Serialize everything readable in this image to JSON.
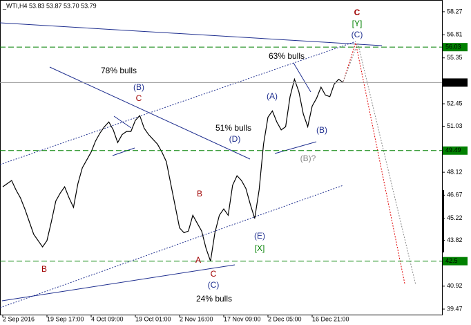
{
  "chart_data": {
    "type": "line",
    "title": "_WTI,H4  53.83 53.87 53.70 53.79",
    "categories": [
      "2 Sep 2016",
      null,
      null,
      null,
      null,
      null,
      null,
      null,
      null,
      null,
      "19 Sep 17:00",
      null,
      null,
      null,
      null,
      null,
      null,
      null,
      null,
      null,
      "4 Oct 09:00",
      null,
      null,
      null,
      null,
      null,
      null,
      null,
      null,
      null,
      "19 Oct 01:00",
      null,
      null,
      null,
      null,
      null,
      null,
      null,
      null,
      null,
      "2 Nov 16:00",
      null,
      null,
      null,
      null,
      null,
      null,
      null,
      null,
      null,
      "17 Nov 09:00",
      null,
      null,
      null,
      null,
      null,
      null,
      null,
      null,
      null,
      "2 Dec 05:00",
      null,
      null,
      null,
      null,
      null,
      null,
      null,
      null,
      null,
      "16 Dec 21:00",
      null,
      null,
      null,
      null,
      null,
      null,
      null
    ],
    "series": [
      {
        "color": "#000000",
        "values": [
          47.2,
          47.4,
          47.6,
          47.0,
          46.5,
          45.8,
          45.0,
          44.2,
          43.8,
          43.4,
          43.8,
          45.0,
          46.3,
          46.8,
          47.2,
          46.5,
          45.9,
          47.4,
          48.4,
          48.9,
          49.4,
          50.1,
          50.6,
          51.0,
          51.3,
          50.8,
          50.0,
          50.5,
          50.7,
          50.7,
          51.4,
          51.7,
          50.9,
          50.5,
          50.2,
          49.9,
          49.4,
          48.8,
          47.4,
          46.0,
          44.6,
          44.3,
          44.4,
          45.4,
          44.9,
          44.4,
          43.3,
          42.5,
          44.3,
          45.4,
          45.8,
          45.4,
          47.3,
          47.9,
          47.6,
          47.1,
          46.1,
          45.2,
          47.0,
          49.9,
          51.6,
          52.0,
          51.3,
          50.8,
          51.0,
          52.9,
          54.0,
          53.2,
          51.8,
          51.0,
          52.3,
          52.8,
          53.5,
          53.0,
          52.9,
          53.7,
          54.0,
          53.8
        ]
      }
    ],
    "ylim": [
      39.12,
      59.01
    ],
    "yticks": [
      58.27,
      56.81,
      55.35,
      52.45,
      51.03,
      48.12,
      46.67,
      45.22,
      43.82,
      40.92,
      39.47
    ],
    "levels": [
      {
        "value": 56.03,
        "color": "#008000"
      },
      {
        "value": 53.79,
        "color": "#000000"
      },
      {
        "value": 49.49,
        "color": "#008000"
      },
      {
        "value": 42.5,
        "color": "#008000"
      }
    ],
    "annotations": [
      {
        "text": "78% bulls",
        "color": "#000000"
      },
      {
        "text": "(B)",
        "color": "#1f2f8f"
      },
      {
        "text": "C",
        "color": "#a00000"
      },
      {
        "text": "51% bulls",
        "color": "#000000"
      },
      {
        "text": "(D)",
        "color": "#1f2f8f"
      },
      {
        "text": "63% bulls",
        "color": "#000000"
      },
      {
        "text": "(A)",
        "color": "#1f2f8f"
      },
      {
        "text": "(B)",
        "color": "#1f2f8f"
      },
      {
        "text": "(B)?",
        "color": "#888888"
      },
      {
        "text": "C",
        "color": "#a00000"
      },
      {
        "text": "[Y]",
        "color": "#008000"
      },
      {
        "text": "(C)",
        "color": "#1f2f8f"
      },
      {
        "text": "B",
        "color": "#a00000"
      },
      {
        "text": "A",
        "color": "#a00000"
      },
      {
        "text": "C",
        "color": "#a00000"
      },
      {
        "text": "(C)",
        "color": "#1f2f8f"
      },
      {
        "text": "24% bulls",
        "color": "#000000"
      },
      {
        "text": "(E)",
        "color": "#1f2f8f"
      },
      {
        "text": "[X]",
        "color": "#008000"
      },
      {
        "text": "B",
        "color": "#a00000"
      }
    ]
  }
}
